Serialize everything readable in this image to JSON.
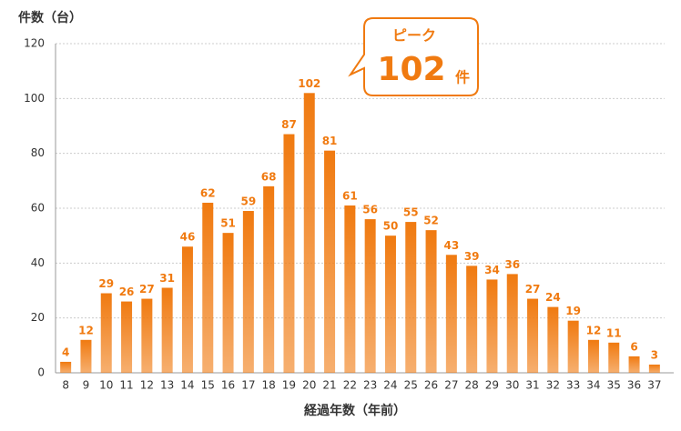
{
  "chart_data": {
    "type": "bar",
    "y_label": "件数（台）",
    "x_label": "経過年数（年前）",
    "categories": [
      "8",
      "9",
      "10",
      "11",
      "12",
      "13",
      "14",
      "15",
      "16",
      "17",
      "18",
      "19",
      "20",
      "21",
      "22",
      "23",
      "24",
      "25",
      "26",
      "27",
      "28",
      "29",
      "30",
      "31",
      "32",
      "33",
      "34",
      "35",
      "36",
      "37"
    ],
    "values": [
      4,
      12,
      29,
      26,
      27,
      31,
      46,
      62,
      51,
      59,
      68,
      87,
      102,
      81,
      61,
      56,
      50,
      55,
      52,
      43,
      39,
      34,
      36,
      27,
      24,
      19,
      12,
      11,
      6,
      3
    ],
    "color": "#f07a10",
    "ylim": [
      0,
      120
    ],
    "yticks": [
      0,
      20,
      40,
      60,
      80,
      100,
      120
    ],
    "grid": true,
    "annotation": {
      "label": "ピーク",
      "value": 102,
      "unit": "件"
    }
  }
}
